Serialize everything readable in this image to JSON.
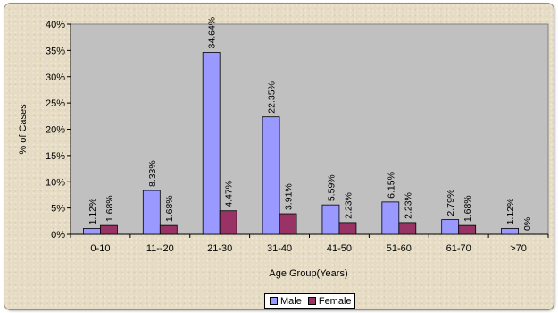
{
  "chart_data": {
    "type": "bar",
    "categories": [
      "0-10",
      "11--20",
      "21-30",
      "31-40",
      "41-50",
      "51-60",
      "61-70",
      ">70"
    ],
    "series": [
      {
        "name": "Male",
        "values": [
          1.12,
          8.33,
          34.64,
          22.35,
          5.59,
          6.15,
          2.79,
          1.12
        ],
        "labels": [
          "1.12%",
          "8.33%",
          "34.64%",
          "22.35%",
          "5.59%",
          "6.15%",
          "2.79%",
          "1.12%"
        ]
      },
      {
        "name": "Female",
        "values": [
          1.68,
          1.68,
          4.47,
          3.91,
          2.23,
          2.23,
          1.68,
          0
        ],
        "labels": [
          "1.68%",
          "1.68%",
          "4.47%",
          "3.91%",
          "2.23%",
          "2.23%",
          "1.68%",
          "0%"
        ]
      }
    ],
    "colors": {
      "Male": "#9999ff",
      "Female": "#993366",
      "plot_bg": "#c0c0c0",
      "frame_bg": "#e6dcc4"
    },
    "title": "",
    "xlabel": "Age Group(Years)",
    "ylabel": "% of Cases",
    "ylim": [
      0,
      40
    ],
    "yticks": [
      "0%",
      "5%",
      "10%",
      "15%",
      "20%",
      "25%",
      "30%",
      "35%",
      "40%"
    ],
    "grid": false,
    "legend_position": "bottom"
  }
}
